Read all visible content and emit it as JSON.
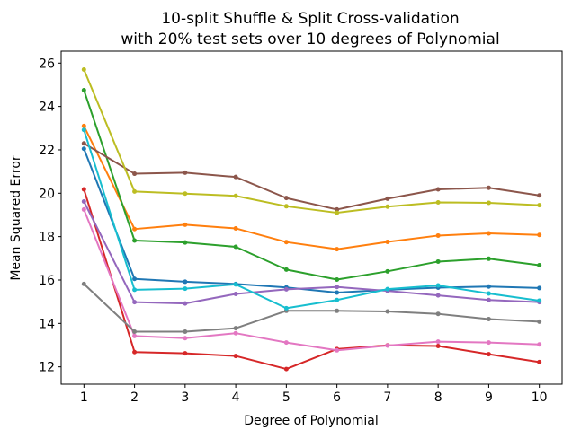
{
  "chart_data": {
    "type": "line",
    "title": "10-split Shuffle & Split Cross-validation",
    "subtitle": "with 20% test sets over 10 degrees of Polynomial",
    "xlabel": "Degree of Polynomial",
    "ylabel": "Mean Squared Error",
    "x": [
      1,
      2,
      3,
      4,
      5,
      6,
      7,
      8,
      9,
      10
    ],
    "xticks": [
      "1",
      "2",
      "3",
      "4",
      "5",
      "6",
      "7",
      "8",
      "9",
      "10"
    ],
    "yticks": [
      "12",
      "14",
      "16",
      "18",
      "20",
      "22",
      "24",
      "26"
    ],
    "xlim": [
      0.55,
      10.45
    ],
    "ylim": [
      11.2,
      26.55
    ],
    "grid": false,
    "legend": "none",
    "series": [
      {
        "color": "#1f77b4",
        "values": [
          22.05,
          16.05,
          15.92,
          15.82,
          15.66,
          15.42,
          15.55,
          15.65,
          15.7,
          15.63
        ]
      },
      {
        "color": "#ff7f0e",
        "values": [
          23.1,
          18.35,
          18.55,
          18.38,
          17.75,
          17.42,
          17.76,
          18.05,
          18.15,
          18.08
        ]
      },
      {
        "color": "#2ca02c",
        "values": [
          24.75,
          17.82,
          17.73,
          17.53,
          16.48,
          16.02,
          16.4,
          16.85,
          16.98,
          16.68
        ]
      },
      {
        "color": "#d62728",
        "values": [
          20.18,
          12.68,
          12.62,
          12.5,
          11.9,
          12.82,
          12.99,
          12.96,
          12.58,
          12.22
        ]
      },
      {
        "color": "#9467bd",
        "values": [
          19.62,
          14.98,
          14.92,
          15.36,
          15.57,
          15.68,
          15.5,
          15.29,
          15.08,
          14.98
        ]
      },
      {
        "color": "#8c564b",
        "values": [
          22.3,
          20.9,
          20.95,
          20.75,
          19.78,
          19.25,
          19.75,
          20.18,
          20.25,
          19.9
        ]
      },
      {
        "color": "#e377c2",
        "values": [
          19.25,
          13.42,
          13.32,
          13.55,
          13.12,
          12.76,
          12.98,
          13.16,
          13.12,
          13.03
        ]
      },
      {
        "color": "#7f7f7f",
        "values": [
          15.82,
          13.62,
          13.62,
          13.78,
          14.58,
          14.58,
          14.55,
          14.44,
          14.2,
          14.08
        ]
      },
      {
        "color": "#bcbd22",
        "values": [
          25.7,
          20.08,
          19.98,
          19.88,
          19.4,
          19.1,
          19.38,
          19.58,
          19.56,
          19.45
        ]
      },
      {
        "color": "#17becf",
        "values": [
          22.92,
          15.55,
          15.6,
          15.8,
          14.7,
          15.08,
          15.58,
          15.75,
          15.38,
          15.05
        ]
      }
    ]
  }
}
